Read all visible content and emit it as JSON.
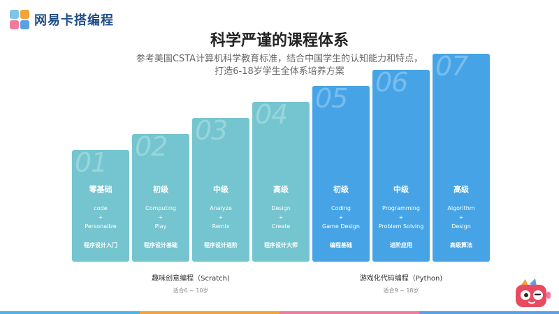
{
  "brand": {
    "name": "网易卡搭编程"
  },
  "title": "科学严谨的课程体系",
  "subtitle": {
    "line1": "参考美国CSTA计算机科学教育标准，结合中国学生的认知能力和特点，",
    "line2": "打造6-18岁学生全体系培养方案"
  },
  "columns": [
    {
      "num": "01",
      "level": "零基础",
      "eng1": "code",
      "plus": "+",
      "eng2": "Personalize",
      "tag": "程序设计入门"
    },
    {
      "num": "02",
      "level": "初级",
      "eng1": "Computing",
      "plus": "+",
      "eng2": "Play",
      "tag": "程序设计基础"
    },
    {
      "num": "03",
      "level": "中级",
      "eng1": "Analyze",
      "plus": "+",
      "eng2": "Remix",
      "tag": "程序设计进阶"
    },
    {
      "num": "04",
      "level": "高级",
      "eng1": "Design",
      "plus": "+",
      "eng2": "Create",
      "tag": "程序设计大师"
    },
    {
      "num": "05",
      "level": "初级",
      "eng1": "Coding",
      "plus": "+",
      "eng2": "Game Design",
      "tag": "编程基础"
    },
    {
      "num": "06",
      "level": "中级",
      "eng1": "Programming",
      "plus": "+",
      "eng2": "Problem Solving",
      "tag": "进阶应用"
    },
    {
      "num": "07",
      "level": "高级",
      "eng1": "Algorithm",
      "plus": "+",
      "eng2": "Design",
      "tag": "高级算法"
    }
  ],
  "groups": [
    {
      "label": "趣味创意编程（Scratch)",
      "age": "适合6 ~ 10岁"
    },
    {
      "label": "游戏化代码编程（Python)",
      "age": "适合9 ~ 18岁"
    }
  ],
  "colors": {
    "teal": "#74c5cf",
    "blue": "#46a4e6",
    "bottom": [
      "#4fb3e8",
      "#f2a33a",
      "#f27a9a",
      "#5aa0e6"
    ]
  }
}
